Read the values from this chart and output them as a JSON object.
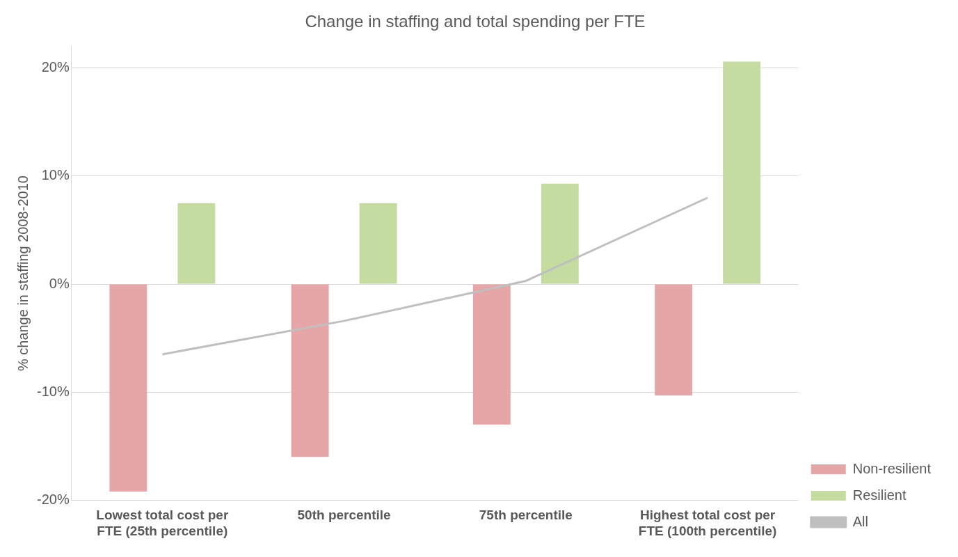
{
  "chart_data": {
    "type": "bar",
    "title": "Change in staffing and total spending per FTE",
    "ylabel": "% change in staffing 2008-2010",
    "categories": [
      "Lowest total cost per FTE (25th percentile)",
      "50th percentile",
      "75th percentile",
      "Highest total cost per FTE (100th percentile)"
    ],
    "series": [
      {
        "name": "Non-resilient",
        "color": "#e6a6a8",
        "values": [
          -19.2,
          -16.0,
          -13.0,
          -10.3
        ]
      },
      {
        "name": "Resilient",
        "color": "#c5dca0",
        "values": [
          7.5,
          7.5,
          9.3,
          20.6
        ]
      },
      {
        "name": "All",
        "type": "line",
        "color": "#bfbfbf",
        "values": [
          -6.5,
          -3.4,
          0.3,
          8.0
        ]
      }
    ],
    "ylim": [
      -20,
      22
    ],
    "yticks": [
      {
        "value": -20,
        "label": "-20%"
      },
      {
        "value": -10,
        "label": "-10%"
      },
      {
        "value": 0,
        "label": "0%"
      },
      {
        "value": 10,
        "label": "10%"
      },
      {
        "value": 20,
        "label": "20%"
      }
    ],
    "grid": "y",
    "legend": "bottom right",
    "marker": "none"
  }
}
